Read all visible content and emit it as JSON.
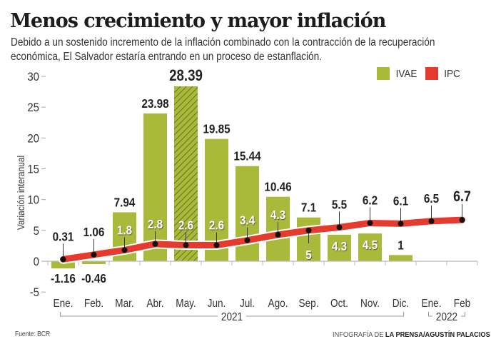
{
  "header": {
    "title": "Menos crecimiento y mayor inflación",
    "subtitle": "Debido a un sostenido incremento de la inflación combinado con la contracción de la recuperación económica, El Salvador estaría entrando en un proceso de estanflación."
  },
  "legend": {
    "items": [
      {
        "label": "IVAE",
        "color": "#a9b93a"
      },
      {
        "label": "IPC",
        "color": "#e53b2e"
      }
    ]
  },
  "footer": {
    "source": "Fuente:  BCR",
    "credit_prefix": "INFOGRAFÍA DE ",
    "credit_bold": "LA PRENSA/AGUSTÍN PALACIOS"
  },
  "chart_data": {
    "type": "bar",
    "title": "Menos crecimiento y mayor inflación",
    "xlabel": "",
    "ylabel": "Variación interanual",
    "ylim": [
      -5,
      30
    ],
    "yticks": [
      -5,
      0,
      5,
      10,
      15,
      20,
      25,
      30
    ],
    "grid": false,
    "legend_position": "top-right",
    "categories": [
      "Ene.",
      "Feb.",
      "Mar.",
      "Abr.",
      "May.",
      "Jun.",
      "Jul.",
      "Ago.",
      "Sep.",
      "Oct.",
      "Nov.",
      "Dic.",
      "Ene.",
      "Feb"
    ],
    "year_groups": [
      {
        "label": "2021",
        "from": 0,
        "to": 11
      },
      {
        "label": "2022",
        "from": 12,
        "to": 13
      }
    ],
    "series": [
      {
        "name": "IVAE",
        "type": "bar",
        "color": "#a9b93a",
        "values": [
          -1.16,
          -0.46,
          7.94,
          23.98,
          28.39,
          19.85,
          15.44,
          10.46,
          7.1,
          4.3,
          4.5,
          1,
          null,
          null
        ],
        "labels": [
          "-1.16",
          "-0.46",
          "7.94",
          "23.98",
          "28.39",
          "19.85",
          "15.44",
          "10.46",
          "7.1",
          "4.3",
          "4.5",
          "1",
          "",
          ""
        ],
        "highlight_index": 4
      },
      {
        "name": "IPC",
        "type": "line",
        "color": "#e53b2e",
        "values": [
          0.31,
          1.06,
          1.8,
          2.8,
          2.6,
          2.6,
          3.4,
          4.3,
          5,
          5.5,
          6.2,
          6.1,
          6.5,
          6.7
        ],
        "labels": [
          "0.31",
          "1.06",
          "1.8",
          "2.8",
          "2.6",
          "2.6",
          "3.4",
          "4.3",
          "5",
          "5.5",
          "6.2",
          "6.1",
          "6.5",
          "6.7"
        ]
      }
    ]
  }
}
